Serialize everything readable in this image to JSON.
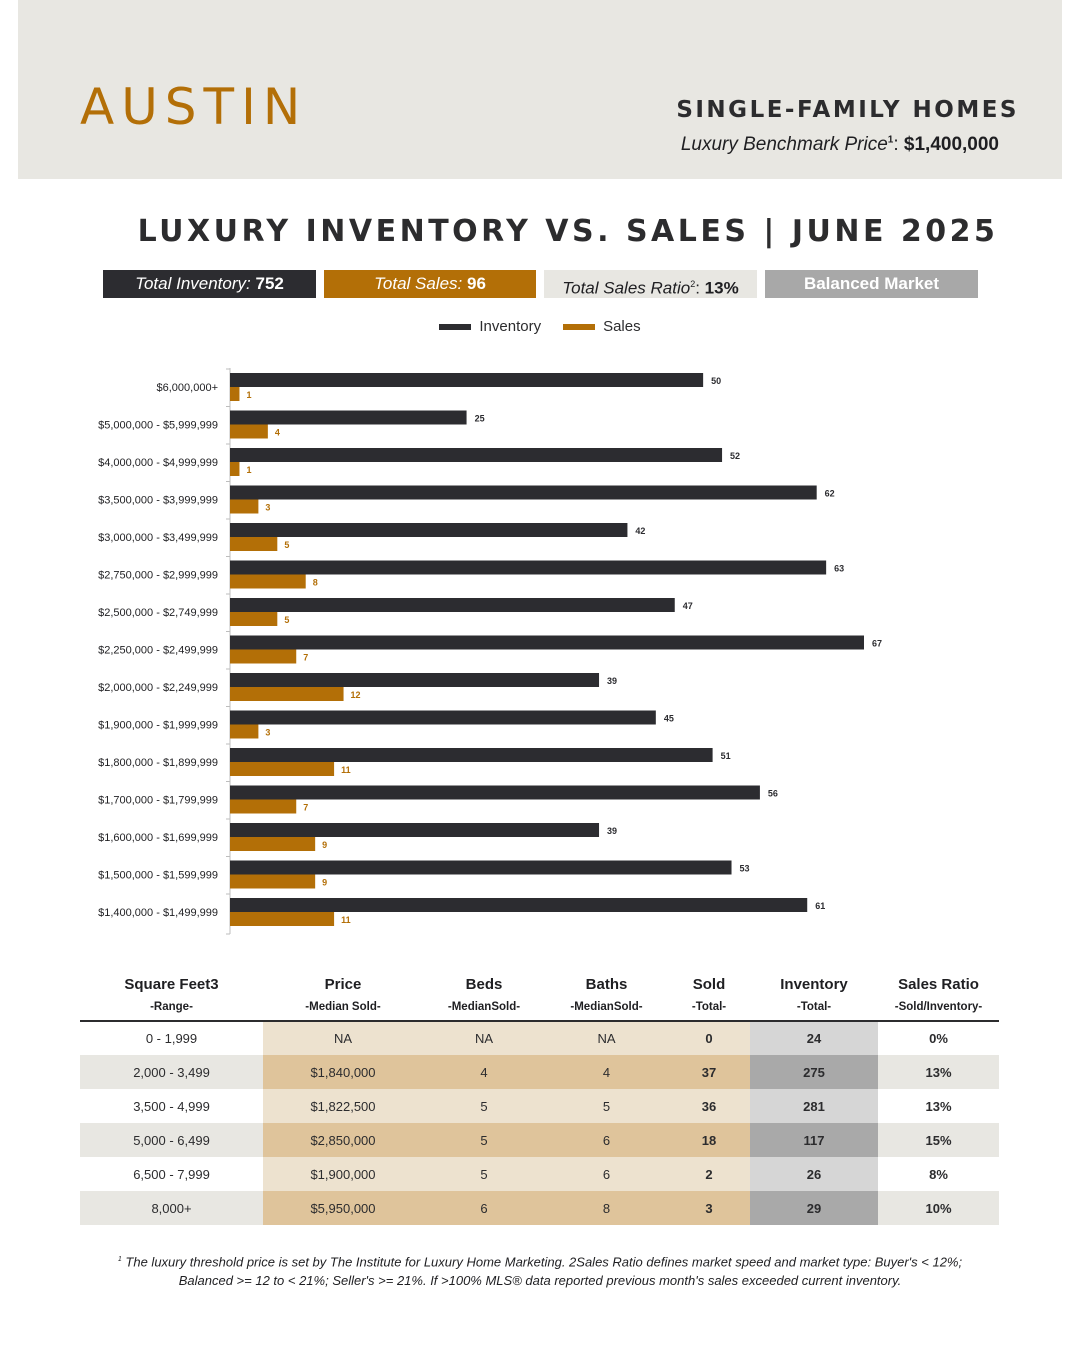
{
  "header": {
    "city": "AUSTIN",
    "home_type": "SINGLE-FAMILY HOMES",
    "benchmark_label": "Luxury Benchmark Price",
    "benchmark_sup": "1",
    "benchmark_colon": ":",
    "benchmark_value": "$1,400,000"
  },
  "title": "LUXURY INVENTORY VS. SALES | JUNE 2025",
  "kpis": {
    "inventory_label": "Total Inventory:",
    "inventory_value": "752",
    "sales_label": "Total Sales:",
    "sales_value": "96",
    "ratio_label": "Total Sales Ratio",
    "ratio_sup": "2",
    "ratio_colon": ":",
    "ratio_value": "13%",
    "market": "Balanced Market"
  },
  "colors": {
    "inventory": "#2c2c30",
    "sales": "#b36f07",
    "gold_accent": "#b36f07"
  },
  "chart_data": {
    "type": "bar",
    "orientation": "horizontal",
    "grid": false,
    "legend_position": "top-center",
    "categories": [
      "$6,000,000+",
      "$5,000,000 - $5,999,999",
      "$4,000,000 - $4,999,999",
      "$3,500,000 - $3,999,999",
      "$3,000,000 - $3,499,999",
      "$2,750,000 - $2,999,999",
      "$2,500,000 - $2,749,999",
      "$2,250,000 - $2,499,999",
      "$2,000,000 - $2,249,999",
      "$1,900,000 - $1,999,999",
      "$1,800,000 - $1,899,999",
      "$1,700,000 - $1,799,999",
      "$1,600,000 - $1,699,999",
      "$1,500,000 - $1,599,999",
      "$1,400,000 - $1,499,999"
    ],
    "series": [
      {
        "name": "Inventory",
        "values": [
          50,
          25,
          52,
          62,
          42,
          63,
          47,
          67,
          39,
          45,
          51,
          56,
          39,
          53,
          61
        ]
      },
      {
        "name": "Sales",
        "values": [
          1,
          4,
          1,
          3,
          5,
          8,
          5,
          7,
          12,
          3,
          11,
          7,
          9,
          9,
          11
        ]
      }
    ],
    "xlim": [
      0,
      67
    ]
  },
  "table": {
    "headers": [
      {
        "title": "Square Feet3",
        "sub": "-Range-"
      },
      {
        "title": "Price",
        "sub": "-Median Sold-"
      },
      {
        "title": "Beds",
        "sub": "-MedianSold-"
      },
      {
        "title": "Baths",
        "sub": "-MedianSold-"
      },
      {
        "title": "Sold",
        "sub": "-Total-"
      },
      {
        "title": "Inventory",
        "sub": "-Total-"
      },
      {
        "title": "Sales Ratio",
        "sub": "-Sold/Inventory-"
      }
    ],
    "rows": [
      [
        "0 - 1,999",
        "NA",
        "NA",
        "NA",
        "0",
        "24",
        "0%"
      ],
      [
        "2,000 - 3,499",
        "$1,840,000",
        "4",
        "4",
        "37",
        "275",
        "13%"
      ],
      [
        "3,500 - 4,999",
        "$1,822,500",
        "5",
        "5",
        "36",
        "281",
        "13%"
      ],
      [
        "5,000 - 6,499",
        "$2,850,000",
        "5",
        "6",
        "18",
        "117",
        "15%"
      ],
      [
        "6,500 - 7,999",
        "$1,900,000",
        "5",
        "6",
        "2",
        "26",
        "8%"
      ],
      [
        "8,000+",
        "$5,950,000",
        "6",
        "8",
        "3",
        "29",
        "10%"
      ]
    ]
  },
  "footnote": {
    "sup": "1",
    "line1": "The luxury threshold price is set by The Institute for Luxury Home Marketing. 2Sales Ratio defines market speed and market type: Buyer's < 12%;",
    "line2": "Balanced >= 12 to < 21%; Seller's >= 21%. If >100% MLS® data reported previous month's sales exceeded current inventory."
  }
}
